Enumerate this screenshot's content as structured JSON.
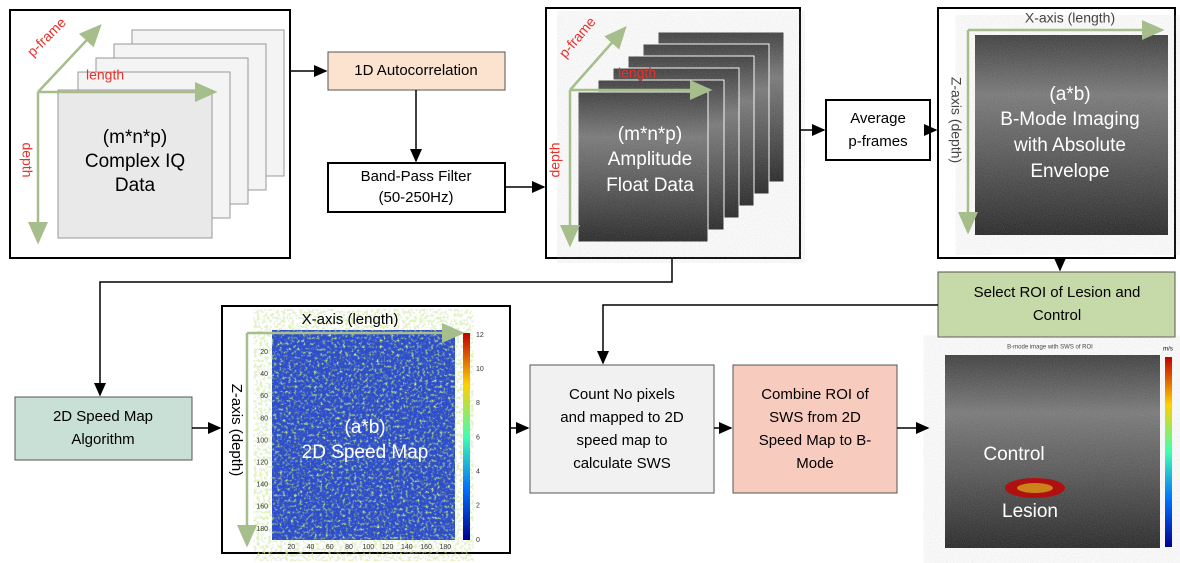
{
  "input_panel": {
    "axes": {
      "p_frame": "p-frame",
      "length": "length",
      "depth": "depth"
    },
    "lines": [
      "(m*n*p)",
      "Complex IQ",
      "Data"
    ]
  },
  "autocorrelation": "1D Autocorrelation",
  "bandpass": [
    "Band-Pass Filter",
    "(50-250Hz)"
  ],
  "amplitude_panel": {
    "axes": {
      "p_frame": "p-frame",
      "length": "length",
      "depth": "depth"
    },
    "lines": [
      "(m*n*p)",
      "Amplitude",
      "Float Data"
    ]
  },
  "average": [
    "Average",
    "p-frames"
  ],
  "bmode_panel": {
    "x_axis": "X-axis (length)",
    "z_axis": "Z-axis (depth)",
    "lines": [
      "(a*b)",
      "B-Mode Imaging",
      "with Absolute",
      "Envelope"
    ]
  },
  "select_roi": [
    "Select ROI of Lesion and",
    "Control"
  ],
  "algorithm": [
    "2D Speed Map",
    "Algorithm"
  ],
  "speed_map": {
    "x_axis": "X-axis (length)",
    "z_axis": "Z-axis (depth)",
    "lines": [
      "(a*b)",
      "2D Speed Map"
    ],
    "xticks": [
      20,
      40,
      60,
      80,
      100,
      120,
      140,
      160,
      180
    ],
    "yticks": [
      20,
      40,
      60,
      80,
      100,
      120,
      140,
      160,
      180
    ],
    "colorbar_ticks": [
      0,
      2,
      4,
      6,
      8,
      10,
      12
    ]
  },
  "count": [
    "Count No pixels",
    "and mapped to 2D",
    "speed map to",
    "calculate SWS"
  ],
  "combine": [
    "Combine ROI of",
    "SWS from 2D",
    "Speed Map to B-",
    "Mode"
  ],
  "result": {
    "title": "B-mode image with SWS of ROI",
    "control": "Control",
    "lesion": "Lesion",
    "unit": "m/s"
  }
}
